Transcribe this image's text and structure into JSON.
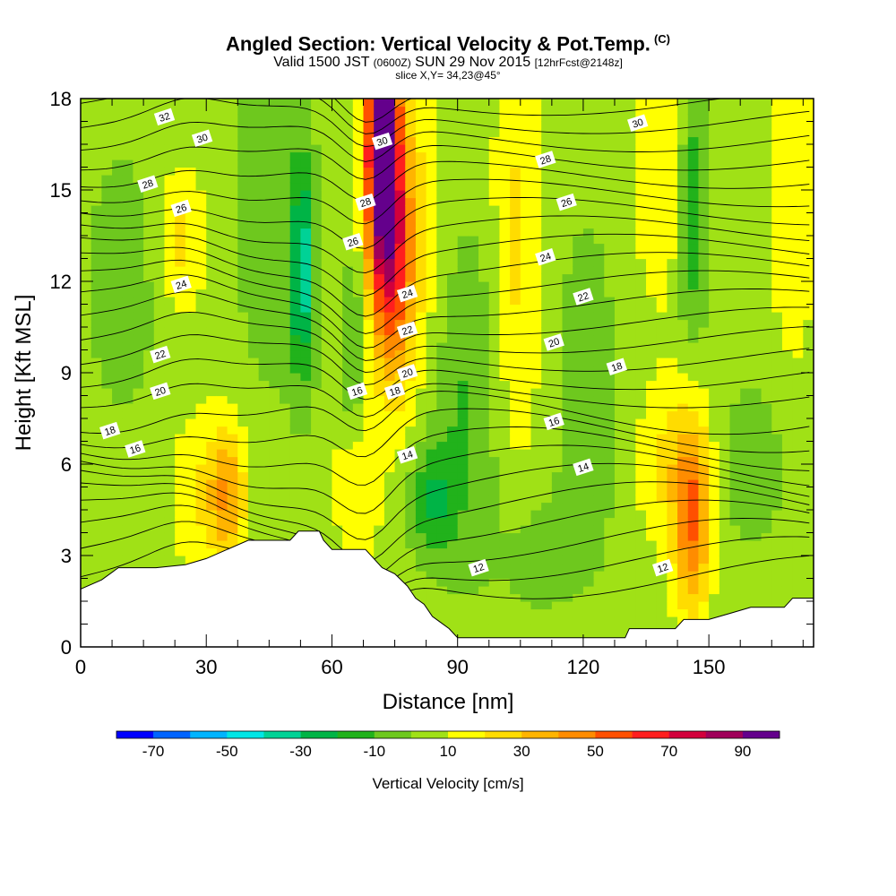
{
  "header": {
    "title": "Angled Section: Vertical Velocity & Pot.Temp.",
    "title_tag": "(C)",
    "valid_prefix": "Valid 1500 JST",
    "valid_utc": "(0600Z)",
    "valid_date": "SUN 29 Nov 2015",
    "forecast": "[12hrFcst@2148z]",
    "slice": "slice X,Y= 34,23@45°"
  },
  "chart_data": {
    "type": "heatmap",
    "xlabel": "Distance [nm]",
    "ylabel": "Height [Kft MSL]",
    "xlim": [
      0,
      175
    ],
    "ylim": [
      0,
      18
    ],
    "x_ticks": [
      "0",
      "30",
      "60",
      "90",
      "120",
      "150"
    ],
    "x_tick_values": [
      0,
      30,
      60,
      90,
      120,
      150
    ],
    "y_ticks": [
      "0",
      "3",
      "6",
      "9",
      "12",
      "15",
      "18"
    ],
    "y_tick_values": [
      0,
      3,
      6,
      9,
      12,
      15,
      18
    ],
    "colorbar": {
      "label": "Vertical Velocity [cm/s]",
      "tick_labels": [
        "-70",
        "-50",
        "-30",
        "-10",
        "10",
        "30",
        "50",
        "70",
        "90"
      ],
      "colors": [
        "#0000ff",
        "#0064ff",
        "#00b4ff",
        "#00e6e6",
        "#00d296",
        "#00b446",
        "#21b21b",
        "#6ec81e",
        "#a0e116",
        "#ffff00",
        "#ffdc00",
        "#ffb400",
        "#ff8c00",
        "#ff5000",
        "#ff1e1e",
        "#d2003c",
        "#a0005a",
        "#64008c"
      ]
    },
    "terrain": [
      [
        0,
        1.9
      ],
      [
        5,
        2.2
      ],
      [
        9,
        2.6
      ],
      [
        18,
        2.6
      ],
      [
        25,
        2.7
      ],
      [
        30,
        2.9
      ],
      [
        35,
        3.2
      ],
      [
        40,
        3.5
      ],
      [
        50,
        3.5
      ],
      [
        52,
        3.8
      ],
      [
        57,
        3.8
      ],
      [
        58,
        3.5
      ],
      [
        60,
        3.2
      ],
      [
        68,
        3.2
      ],
      [
        72,
        2.6
      ],
      [
        75,
        2.4
      ],
      [
        78,
        2.0
      ],
      [
        80,
        1.6
      ],
      [
        82,
        1.4
      ],
      [
        84,
        1.0
      ],
      [
        86,
        0.8
      ],
      [
        88,
        0.6
      ],
      [
        90,
        0.3
      ],
      [
        130,
        0.3
      ],
      [
        131,
        0.6
      ],
      [
        137,
        0.6
      ],
      [
        142,
        0.6
      ],
      [
        144,
        0.9
      ],
      [
        150,
        0.9
      ],
      [
        155,
        1.1
      ],
      [
        160,
        1.3
      ],
      [
        168,
        1.3
      ],
      [
        170,
        1.6
      ],
      [
        175,
        1.6
      ]
    ],
    "theta_contour_labels": [
      {
        "text": "32",
        "x": 20,
        "y": 17.4
      },
      {
        "text": "30",
        "x": 29,
        "y": 16.7
      },
      {
        "text": "28",
        "x": 16,
        "y": 15.2
      },
      {
        "text": "26",
        "x": 24,
        "y": 14.4
      },
      {
        "text": "24",
        "x": 24,
        "y": 11.9
      },
      {
        "text": "22",
        "x": 19,
        "y": 9.6
      },
      {
        "text": "20",
        "x": 19,
        "y": 8.4
      },
      {
        "text": "18",
        "x": 7,
        "y": 7.1
      },
      {
        "text": "16",
        "x": 13,
        "y": 6.5
      },
      {
        "text": "30",
        "x": 72,
        "y": 16.6
      },
      {
        "text": "28",
        "x": 68,
        "y": 14.6
      },
      {
        "text": "26",
        "x": 65,
        "y": 13.3
      },
      {
        "text": "24",
        "x": 78,
        "y": 11.6
      },
      {
        "text": "22",
        "x": 78,
        "y": 10.4
      },
      {
        "text": "20",
        "x": 78,
        "y": 9.0
      },
      {
        "text": "18",
        "x": 75,
        "y": 8.4
      },
      {
        "text": "16",
        "x": 66,
        "y": 8.4
      },
      {
        "text": "14",
        "x": 78,
        "y": 6.3
      },
      {
        "text": "12",
        "x": 95,
        "y": 2.6
      },
      {
        "text": "30",
        "x": 133,
        "y": 17.2
      },
      {
        "text": "28",
        "x": 111,
        "y": 16.0
      },
      {
        "text": "26",
        "x": 116,
        "y": 14.6
      },
      {
        "text": "24",
        "x": 111,
        "y": 12.8
      },
      {
        "text": "22",
        "x": 120,
        "y": 11.5
      },
      {
        "text": "20",
        "x": 113,
        "y": 10.0
      },
      {
        "text": "18",
        "x": 128,
        "y": 9.2
      },
      {
        "text": "16",
        "x": 113,
        "y": 7.4
      },
      {
        "text": "14",
        "x": 120,
        "y": 5.9
      },
      {
        "text": "12",
        "x": 139,
        "y": 2.6
      }
    ]
  }
}
